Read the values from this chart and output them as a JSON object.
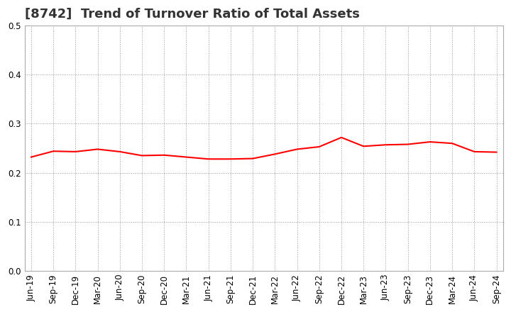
{
  "title": "[8742]  Trend of Turnover Ratio of Total Assets",
  "x_labels": [
    "Jun-19",
    "Sep-19",
    "Dec-19",
    "Mar-20",
    "Jun-20",
    "Sep-20",
    "Dec-20",
    "Mar-21",
    "Jun-21",
    "Sep-21",
    "Dec-21",
    "Mar-22",
    "Jun-22",
    "Sep-22",
    "Dec-22",
    "Mar-23",
    "Jun-23",
    "Sep-23",
    "Dec-23",
    "Mar-24",
    "Jun-24",
    "Sep-24"
  ],
  "y_values": [
    0.232,
    0.244,
    0.243,
    0.248,
    0.243,
    0.235,
    0.236,
    0.232,
    0.228,
    0.228,
    0.229,
    0.238,
    0.248,
    0.253,
    0.272,
    0.254,
    0.257,
    0.258,
    0.263,
    0.26,
    0.243,
    0.242
  ],
  "ylim": [
    0.0,
    0.5
  ],
  "yticks": [
    0.0,
    0.1,
    0.2,
    0.3,
    0.4,
    0.5
  ],
  "line_color": "#ff0000",
  "line_width": 1.5,
  "background_color": "#ffffff",
  "grid_color": "#999999",
  "title_fontsize": 13,
  "tick_fontsize": 8.5,
  "title_color": "#333333"
}
